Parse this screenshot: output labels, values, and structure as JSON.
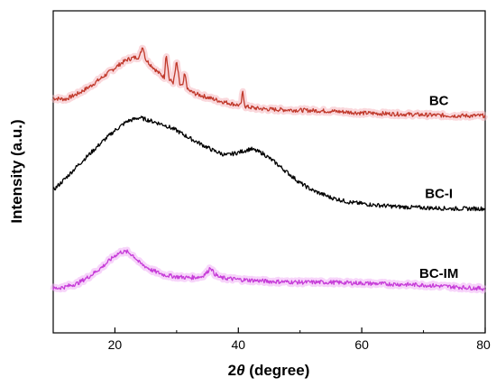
{
  "chart_data": {
    "type": "line",
    "title": "",
    "xlabel_prefix": "2",
    "xlabel_symbol": "θ",
    "xlabel_suffix": " (degree)",
    "ylabel": "Intensity (a.u.)",
    "xlim": [
      10,
      80
    ],
    "x_ticks": [
      20,
      40,
      60,
      80
    ],
    "ylim": [
      0,
      3.5
    ],
    "y_ticks_shown": false,
    "grid": false,
    "legend": "inline labels at right",
    "series": [
      {
        "name": "BC",
        "color": "#c0392b",
        "glow": "#f5b8c0",
        "points": [
          [
            10,
            2.55
          ],
          [
            12,
            2.54
          ],
          [
            14,
            2.6
          ],
          [
            16,
            2.68
          ],
          [
            18,
            2.78
          ],
          [
            20,
            2.88
          ],
          [
            21,
            2.93
          ],
          [
            22,
            2.97
          ],
          [
            23,
            2.99
          ],
          [
            24,
            3.0
          ],
          [
            24.5,
            3.12
          ],
          [
            25,
            2.97
          ],
          [
            26,
            2.9
          ],
          [
            27,
            2.83
          ],
          [
            28,
            2.78
          ],
          [
            28.3,
            3.05
          ],
          [
            28.8,
            2.75
          ],
          [
            29.5,
            2.72
          ],
          [
            30,
            2.95
          ],
          [
            30.5,
            2.7
          ],
          [
            31,
            2.68
          ],
          [
            31.3,
            2.82
          ],
          [
            31.8,
            2.64
          ],
          [
            33,
            2.6
          ],
          [
            34,
            2.58
          ],
          [
            35,
            2.56
          ],
          [
            37,
            2.52
          ],
          [
            39,
            2.49
          ],
          [
            40.4,
            2.47
          ],
          [
            40.7,
            2.62
          ],
          [
            41.1,
            2.46
          ],
          [
            43,
            2.44
          ],
          [
            45,
            2.43
          ],
          [
            50,
            2.42
          ],
          [
            55,
            2.41
          ],
          [
            60,
            2.39
          ],
          [
            65,
            2.38
          ],
          [
            70,
            2.37
          ],
          [
            75,
            2.36
          ],
          [
            80,
            2.36
          ]
        ]
      },
      {
        "name": "BC-I",
        "color": "#000000",
        "glow": "#000000",
        "points": [
          [
            10,
            1.55
          ],
          [
            12,
            1.68
          ],
          [
            14,
            1.82
          ],
          [
            16,
            1.95
          ],
          [
            18,
            2.08
          ],
          [
            20,
            2.2
          ],
          [
            22,
            2.3
          ],
          [
            24,
            2.34
          ],
          [
            26,
            2.3
          ],
          [
            28,
            2.26
          ],
          [
            30,
            2.2
          ],
          [
            32,
            2.12
          ],
          [
            34,
            2.05
          ],
          [
            36,
            1.98
          ],
          [
            38,
            1.93
          ],
          [
            40,
            1.96
          ],
          [
            42,
            2.0
          ],
          [
            44,
            1.95
          ],
          [
            46,
            1.85
          ],
          [
            48,
            1.74
          ],
          [
            50,
            1.63
          ],
          [
            52,
            1.55
          ],
          [
            55,
            1.47
          ],
          [
            58,
            1.42
          ],
          [
            62,
            1.39
          ],
          [
            66,
            1.37
          ],
          [
            70,
            1.36
          ],
          [
            75,
            1.35
          ],
          [
            80,
            1.35
          ]
        ]
      },
      {
        "name": "BC-IM",
        "color": "#c63cd8",
        "glow": "#f0b0f5",
        "points": [
          [
            10,
            0.48
          ],
          [
            12,
            0.5
          ],
          [
            14,
            0.54
          ],
          [
            16,
            0.62
          ],
          [
            18,
            0.72
          ],
          [
            20,
            0.84
          ],
          [
            21,
            0.88
          ],
          [
            22,
            0.88
          ],
          [
            23,
            0.84
          ],
          [
            24,
            0.76
          ],
          [
            26,
            0.68
          ],
          [
            28,
            0.63
          ],
          [
            30,
            0.61
          ],
          [
            32,
            0.6
          ],
          [
            34,
            0.61
          ],
          [
            35,
            0.66
          ],
          [
            35.5,
            0.72
          ],
          [
            36,
            0.65
          ],
          [
            37,
            0.6
          ],
          [
            40,
            0.58
          ],
          [
            45,
            0.56
          ],
          [
            50,
            0.55
          ],
          [
            55,
            0.55
          ],
          [
            60,
            0.54
          ],
          [
            65,
            0.53
          ],
          [
            70,
            0.52
          ],
          [
            75,
            0.5
          ],
          [
            80,
            0.48
          ]
        ]
      }
    ]
  }
}
